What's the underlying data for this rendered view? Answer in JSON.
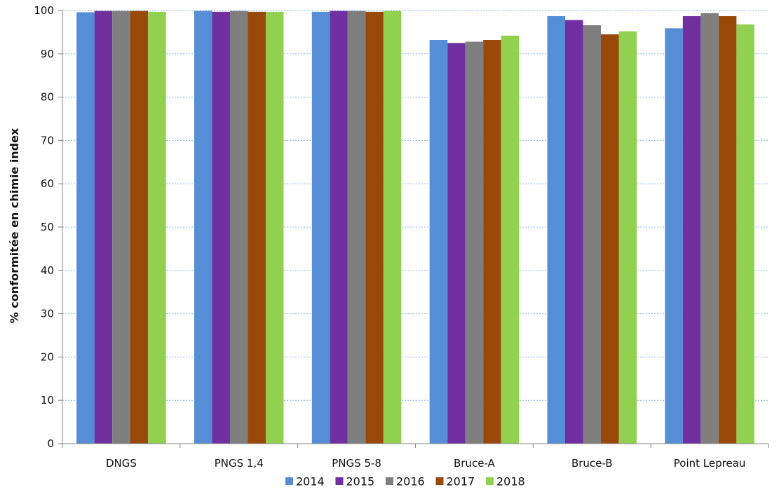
{
  "chart_data": {
    "type": "bar",
    "ylabel": "% conformitée en chimie index",
    "ylim": [
      0,
      100
    ],
    "yticks": [
      0,
      10,
      20,
      30,
      40,
      50,
      60,
      70,
      80,
      90,
      100
    ],
    "grid": true,
    "legend_position": "bottom",
    "categories": [
      "DNGS",
      "PNGS 1,4",
      "PNGS 5-8",
      "Bruce-A",
      "Bruce-B",
      "Point Lepreau"
    ],
    "series": [
      {
        "name": "2014",
        "color": "#558ED5",
        "values": [
          99.6,
          99.9,
          99.7,
          93.2,
          98.7,
          95.9
        ]
      },
      {
        "name": "2015",
        "color": "#7030A0",
        "values": [
          99.9,
          99.7,
          99.9,
          92.5,
          97.8,
          98.7
        ]
      },
      {
        "name": "2016",
        "color": "#7F7F7F",
        "values": [
          99.9,
          99.9,
          99.9,
          92.8,
          96.6,
          99.4
        ]
      },
      {
        "name": "2017",
        "color": "#984807",
        "values": [
          99.9,
          99.7,
          99.7,
          93.2,
          94.5,
          98.7
        ]
      },
      {
        "name": "2018",
        "color": "#92D050",
        "values": [
          99.7,
          99.7,
          99.9,
          94.2,
          95.2,
          96.8
        ]
      }
    ]
  }
}
